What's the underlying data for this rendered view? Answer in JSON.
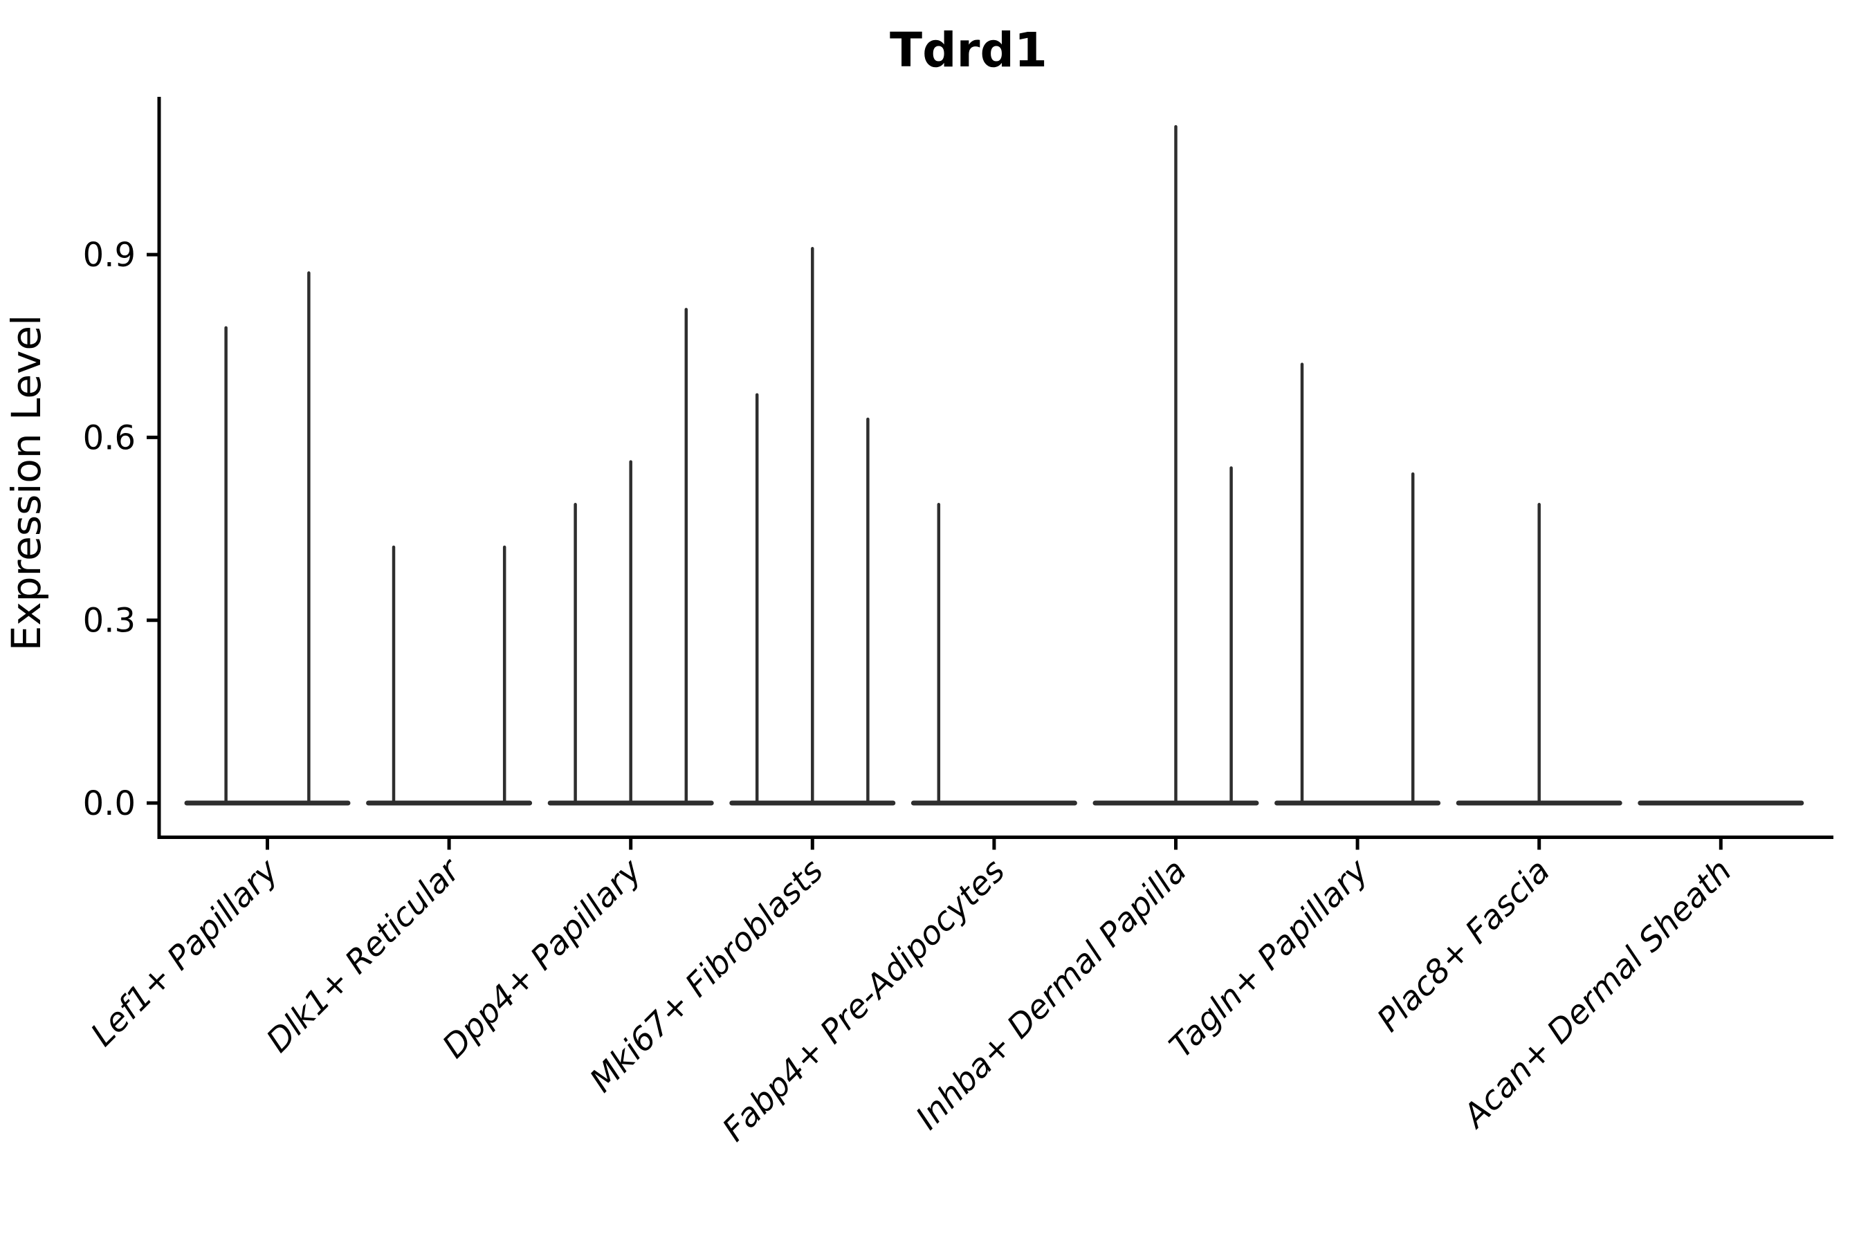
{
  "chart_data": {
    "type": "violin",
    "title": "Tdrd1",
    "xlabel": "",
    "ylabel": "Expression Level",
    "ylim": [
      -0.056,
      1.16
    ],
    "grid": false,
    "legend": false,
    "violin_color": "#2e2e2e",
    "axis_color": "#000000",
    "yticks": [
      {
        "value": 0.0,
        "label": "0.0"
      },
      {
        "value": 0.3,
        "label": "0.3"
      },
      {
        "value": 0.6,
        "label": "0.6"
      },
      {
        "value": 0.9,
        "label": "0.9"
      }
    ],
    "note": "Each category shows flat near-zero violin bodies with thin density spikes; spike dx is offset from category center in category-width units, h is peak expression level",
    "categories": [
      {
        "label": "Lef1+ Papillary",
        "spikes": [
          {
            "dx": -0.228,
            "h": 0.78
          },
          {
            "dx": 0.228,
            "h": 0.87
          }
        ]
      },
      {
        "label": "Dlk1+ Reticular",
        "spikes": [
          {
            "dx": -0.305,
            "h": 0.42
          },
          {
            "dx": 0.305,
            "h": 0.42
          }
        ]
      },
      {
        "label": "Dpp4+ Papillary",
        "spikes": [
          {
            "dx": -0.305,
            "h": 0.49
          },
          {
            "dx": 0.0,
            "h": 0.56
          },
          {
            "dx": 0.305,
            "h": 0.81
          }
        ]
      },
      {
        "label": "Mki67+ Fibroblasts",
        "spikes": [
          {
            "dx": -0.305,
            "h": 0.67
          },
          {
            "dx": 0.0,
            "h": 0.91
          },
          {
            "dx": 0.305,
            "h": 0.63
          }
        ]
      },
      {
        "label": "Fabp4+ Pre-Adipocytes",
        "spikes": [
          {
            "dx": -0.305,
            "h": 0.49
          }
        ]
      },
      {
        "label": "Inhba+ Dermal Papilla",
        "spikes": [
          {
            "dx": 0.0,
            "h": 1.11
          },
          {
            "dx": 0.305,
            "h": 0.55
          }
        ]
      },
      {
        "label": "Tagln+ Papillary",
        "spikes": [
          {
            "dx": -0.305,
            "h": 0.72
          },
          {
            "dx": 0.305,
            "h": 0.54
          }
        ]
      },
      {
        "label": "Plac8+ Fascia",
        "spikes": [
          {
            "dx": 0.0,
            "h": 0.49
          }
        ]
      },
      {
        "label": "Acan+ Dermal Sheath",
        "spikes": []
      }
    ]
  }
}
